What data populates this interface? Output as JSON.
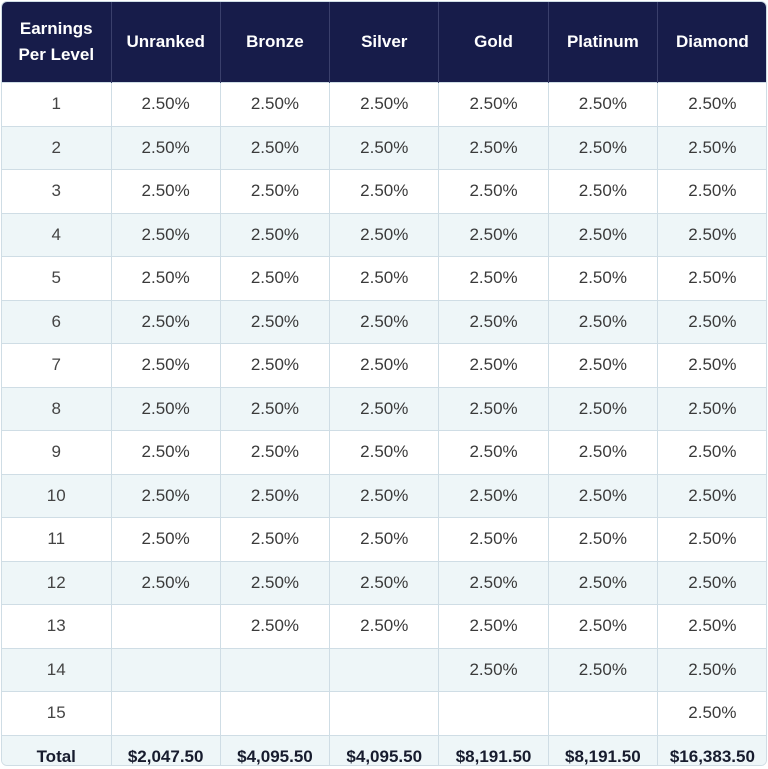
{
  "table": {
    "headers": [
      "Earnings Per Level",
      "Unranked",
      "Bronze",
      "Silver",
      "Gold",
      "Platinum",
      "Diamond"
    ],
    "header_first_lines": [
      "Earnings",
      "Per Level"
    ],
    "rows": [
      {
        "level": "1",
        "values": [
          "2.50%",
          "2.50%",
          "2.50%",
          "2.50%",
          "2.50%",
          "2.50%"
        ]
      },
      {
        "level": "2",
        "values": [
          "2.50%",
          "2.50%",
          "2.50%",
          "2.50%",
          "2.50%",
          "2.50%"
        ]
      },
      {
        "level": "3",
        "values": [
          "2.50%",
          "2.50%",
          "2.50%",
          "2.50%",
          "2.50%",
          "2.50%"
        ]
      },
      {
        "level": "4",
        "values": [
          "2.50%",
          "2.50%",
          "2.50%",
          "2.50%",
          "2.50%",
          "2.50%"
        ]
      },
      {
        "level": "5",
        "values": [
          "2.50%",
          "2.50%",
          "2.50%",
          "2.50%",
          "2.50%",
          "2.50%"
        ]
      },
      {
        "level": "6",
        "values": [
          "2.50%",
          "2.50%",
          "2.50%",
          "2.50%",
          "2.50%",
          "2.50%"
        ]
      },
      {
        "level": "7",
        "values": [
          "2.50%",
          "2.50%",
          "2.50%",
          "2.50%",
          "2.50%",
          "2.50%"
        ]
      },
      {
        "level": "8",
        "values": [
          "2.50%",
          "2.50%",
          "2.50%",
          "2.50%",
          "2.50%",
          "2.50%"
        ]
      },
      {
        "level": "9",
        "values": [
          "2.50%",
          "2.50%",
          "2.50%",
          "2.50%",
          "2.50%",
          "2.50%"
        ]
      },
      {
        "level": "10",
        "values": [
          "2.50%",
          "2.50%",
          "2.50%",
          "2.50%",
          "2.50%",
          "2.50%"
        ]
      },
      {
        "level": "11",
        "values": [
          "2.50%",
          "2.50%",
          "2.50%",
          "2.50%",
          "2.50%",
          "2.50%"
        ]
      },
      {
        "level": "12",
        "values": [
          "2.50%",
          "2.50%",
          "2.50%",
          "2.50%",
          "2.50%",
          "2.50%"
        ]
      },
      {
        "level": "13",
        "values": [
          "",
          "2.50%",
          "2.50%",
          "2.50%",
          "2.50%",
          "2.50%"
        ]
      },
      {
        "level": "14",
        "values": [
          "",
          "",
          "",
          "2.50%",
          "2.50%",
          "2.50%"
        ]
      },
      {
        "level": "15",
        "values": [
          "",
          "",
          "",
          "",
          "",
          "2.50%"
        ]
      }
    ],
    "total": {
      "label": "Total",
      "values": [
        "$2,047.50",
        "$4,095.50",
        "$4,095.50",
        "$8,191.50",
        "$8,191.50",
        "$16,383.50"
      ]
    }
  },
  "colors": {
    "header_bg": "#171c4a",
    "header_text": "#ffffff",
    "stripe": "#eef6f8",
    "border": "#cfdde5"
  }
}
